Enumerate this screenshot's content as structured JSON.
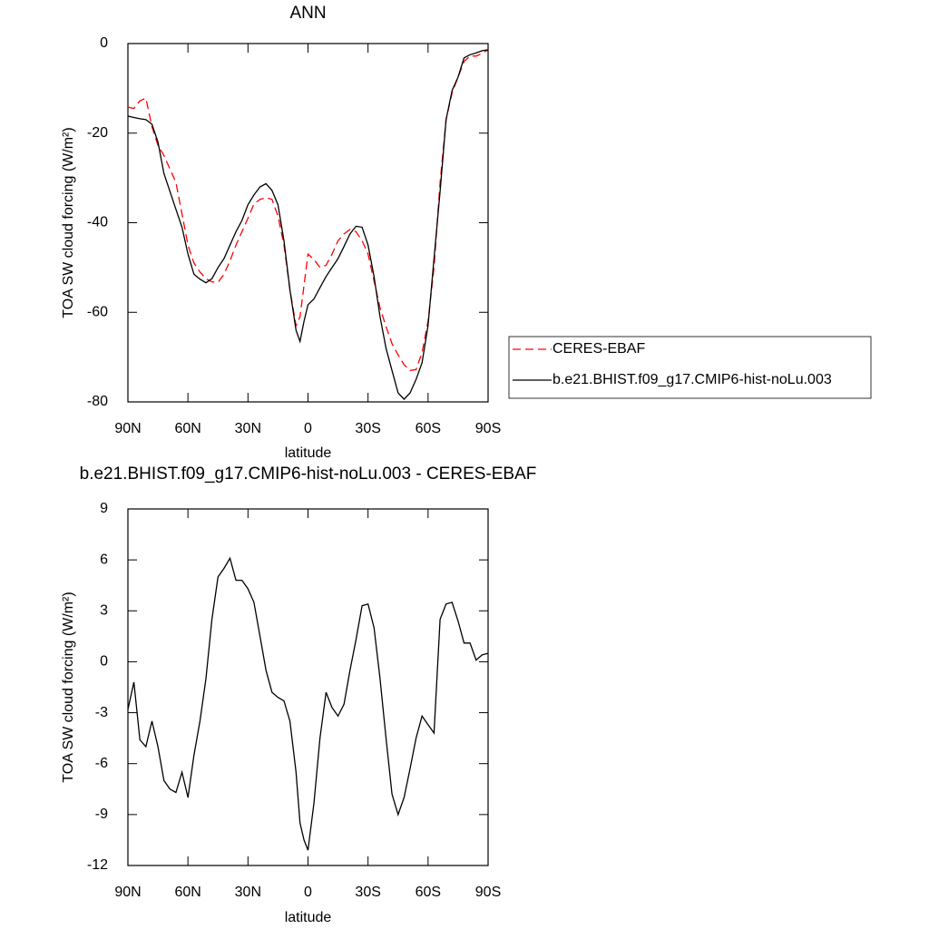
{
  "chart_data": [
    {
      "type": "line",
      "title": "ANN",
      "x_label": "latitude",
      "y_label": "TOA SW cloud forcing (W/m²)",
      "xlim": [
        90,
        -90
      ],
      "ylim": [
        -80,
        0
      ],
      "xticks": [
        {
          "value": 90,
          "label": "90N"
        },
        {
          "value": 60,
          "label": "60N"
        },
        {
          "value": 30,
          "label": "30N"
        },
        0,
        {
          "value": -30,
          "label": "30S"
        },
        {
          "value": -60,
          "label": "60S"
        },
        {
          "value": -90,
          "label": "90S"
        }
      ],
      "yticks": [
        0,
        -20,
        -40,
        -60,
        -80
      ],
      "x": [
        90,
        87,
        84,
        81,
        78,
        75,
        72,
        69,
        66,
        63,
        60,
        57,
        54,
        51,
        48,
        45,
        42,
        39,
        36,
        33,
        30,
        27,
        24,
        21,
        18,
        15,
        12,
        9,
        6,
        4,
        2,
        0,
        -3,
        -6,
        -9,
        -12,
        -15,
        -18,
        -21,
        -24,
        -27,
        -30,
        -33,
        -36,
        -39,
        -42,
        -45,
        -48,
        -51,
        -54,
        -57,
        -60,
        -63,
        -66,
        -69,
        -72,
        -75,
        -78,
        -81,
        -84,
        -87,
        -90
      ],
      "legend": "right",
      "series": [
        {
          "name": "CERES-EBAF",
          "color": "#ff0000",
          "dash": true,
          "values": [
            -14.2,
            -14.5,
            -12.8,
            -12.2,
            -18.6,
            -22.7,
            -25,
            -28,
            -31,
            -38,
            -45,
            -49,
            -51,
            -52.5,
            -53.2,
            -53.3,
            -51.5,
            -48.5,
            -45,
            -42,
            -39,
            -35.8,
            -34.8,
            -34.4,
            -34.8,
            -38.5,
            -45,
            -55,
            -63,
            -61,
            -54,
            -47,
            -48.2,
            -50,
            -49.5,
            -47,
            -44,
            -42.5,
            -41.5,
            -42,
            -44,
            -47,
            -53,
            -59,
            -63.2,
            -67,
            -69.5,
            -71.7,
            -73,
            -72.8,
            -69,
            -62,
            -50,
            -31,
            -17,
            -11,
            -7.5,
            -4,
            -2.8,
            -2.8,
            -2.2,
            -1.4
          ]
        },
        {
          "name": "b.e21.BHIST.f09_g17.CMIP6-hist-noLu.003",
          "color": "#000000",
          "dash": false,
          "values": [
            -16.2,
            -16.5,
            -16.8,
            -17,
            -18,
            -22,
            -29,
            -33,
            -37,
            -41,
            -47,
            -51.5,
            -52.6,
            -53.4,
            -52.5,
            -50,
            -48,
            -45,
            -42,
            -39.5,
            -36,
            -33.8,
            -32,
            -31.3,
            -32.8,
            -36,
            -44,
            -55,
            -64,
            -66.5,
            -62,
            -58.3,
            -57,
            -54.5,
            -52,
            -50,
            -48,
            -45.3,
            -42.5,
            -40.8,
            -41,
            -45,
            -52,
            -61,
            -68,
            -73,
            -78,
            -79.4,
            -78,
            -75,
            -71.3,
            -63,
            -48,
            -33,
            -17,
            -10.5,
            -7.5,
            -3.2,
            -2.5,
            -2.1,
            -1.6,
            -1.4
          ]
        }
      ]
    },
    {
      "type": "line",
      "title": "b.e21.BHIST.f09_g17.CMIP6-hist-noLu.003 - CERES-EBAF",
      "x_label": "latitude",
      "y_label": "TOA SW cloud forcing (W/m²)",
      "xlim": [
        90,
        -90
      ],
      "ylim": [
        -12,
        9
      ],
      "xticks": [
        {
          "value": 90,
          "label": "90N"
        },
        {
          "value": 60,
          "label": "60N"
        },
        {
          "value": 30,
          "label": "30N"
        },
        0,
        {
          "value": -30,
          "label": "30S"
        },
        {
          "value": -60,
          "label": "60S"
        },
        {
          "value": -90,
          "label": "90S"
        }
      ],
      "yticks": [
        9,
        6,
        3,
        0,
        -3,
        -6,
        -9,
        -12
      ],
      "x": [
        90,
        87,
        84,
        81,
        78,
        75,
        72,
        69,
        66,
        63,
        60,
        57,
        54,
        51,
        48,
        45,
        42,
        39,
        36,
        33,
        30,
        27,
        24,
        21,
        18,
        15,
        12,
        9,
        6,
        4,
        2,
        0,
        -3,
        -6,
        -9,
        -12,
        -15,
        -18,
        -21,
        -24,
        -27,
        -30,
        -33,
        -36,
        -39,
        -42,
        -45,
        -48,
        -51,
        -54,
        -57,
        -60,
        -63,
        -66,
        -69,
        -72,
        -75,
        -78,
        -81,
        -84,
        -87,
        -90
      ],
      "series": [
        {
          "color": "#000000",
          "dash": false,
          "values": [
            -2.8,
            -1.2,
            -4.6,
            -5,
            -3.5,
            -5,
            -7,
            -7.5,
            -7.7,
            -6.5,
            -8,
            -5.5,
            -3.5,
            -1,
            2.5,
            5,
            5.5,
            6.1,
            4.8,
            4.8,
            4.3,
            3.5,
            1.5,
            -0.5,
            -1.8,
            -2.1,
            -2.3,
            -3.5,
            -6.5,
            -9.5,
            -10.5,
            -11.1,
            -8.3,
            -4.5,
            -1.8,
            -2.7,
            -3.2,
            -2.5,
            -0.5,
            1.3,
            3.3,
            3.4,
            2,
            -1,
            -4.5,
            -7.8,
            -9,
            -8,
            -6.3,
            -4.5,
            -3.2,
            -3.7,
            -4.2,
            2.5,
            3.4,
            3.5,
            2.4,
            1.1,
            1.1,
            0.1,
            0.4,
            0.5
          ]
        }
      ]
    }
  ]
}
